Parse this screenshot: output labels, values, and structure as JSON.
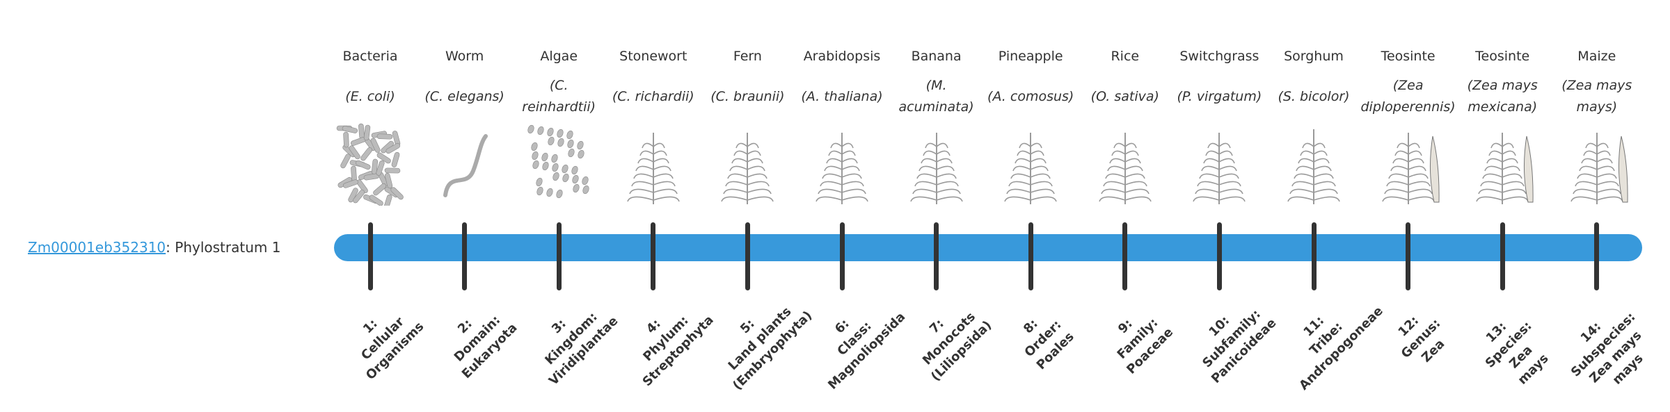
{
  "gene": {
    "id": "Zm00001eb352310",
    "suffix": ": Phylostratum 1"
  },
  "colors": {
    "bar": "#3899db",
    "tick": "#333333",
    "link": "#3498db",
    "illustration": "#9a9a9a"
  },
  "strata": [
    {
      "common": "Bacteria",
      "scientific": "(E. coli)",
      "icon": "bacteria-illustration",
      "label": [
        "1:",
        "Cellular",
        "Organisms"
      ]
    },
    {
      "common": "Worm",
      "scientific": "(C. elegans)",
      "icon": "worm-illustration",
      "label": [
        "2:",
        "Domain:",
        "Eukaryota"
      ]
    },
    {
      "common": "Algae",
      "scientific": "(C. reinhardtii)",
      "icon": "algae-illustration",
      "label": [
        "3:",
        "Kingdom:",
        "Viridiplantae"
      ]
    },
    {
      "common": "Stonewort",
      "scientific": "(C. richardii)",
      "icon": "stonewort-illustration",
      "label": [
        "4:",
        "Phylum:",
        "Streptophyta"
      ]
    },
    {
      "common": "Fern",
      "scientific": "(C. braunii)",
      "icon": "fern-illustration",
      "label": [
        "5:",
        "Land plants",
        "(Embryophyta)"
      ]
    },
    {
      "common": "Arabidopsis",
      "scientific": "(A. thaliana)",
      "icon": "arabidopsis-illustration",
      "label": [
        "6:",
        "Class:",
        "Magnoliopsida"
      ]
    },
    {
      "common": "Banana",
      "scientific": "(M. acuminata)",
      "icon": "banana-illustration",
      "label": [
        "7:",
        "Monocots",
        "(Liliopsida)"
      ]
    },
    {
      "common": "Pineapple",
      "scientific": "(A. comosus)",
      "icon": "pineapple-illustration",
      "label": [
        "8:",
        "Order:",
        "Poales"
      ]
    },
    {
      "common": "Rice",
      "scientific": "(O. sativa)",
      "icon": "rice-illustration",
      "label": [
        "9:",
        "Family:",
        "Poaceae"
      ]
    },
    {
      "common": "Switchgrass",
      "scientific": "(P. virgatum)",
      "icon": "switchgrass-illustration",
      "label": [
        "10:",
        "Subfamily:",
        "Panicoideae"
      ]
    },
    {
      "common": "Sorghum",
      "scientific": "(S. bicolor)",
      "icon": "sorghum-illustration",
      "label": [
        "11:",
        "Tribe:",
        "Andropogoneae"
      ]
    },
    {
      "common": "Teosinte",
      "scientific": "(Zea diploperennis)",
      "icon": "teosinte-illustration",
      "label": [
        "12:",
        "Genus:",
        "Zea"
      ]
    },
    {
      "common": "Teosinte",
      "scientific": "(Zea mays mexicana)",
      "icon": "teosinte-mexicana-illustration",
      "label": [
        "13:",
        "Species:",
        "Zea",
        "mays"
      ]
    },
    {
      "common": "Maize",
      "scientific": "(Zea mays mays)",
      "icon": "maize-illustration",
      "label": [
        "14:",
        "Subspecies:",
        "Zea mays",
        "mays"
      ]
    }
  ]
}
